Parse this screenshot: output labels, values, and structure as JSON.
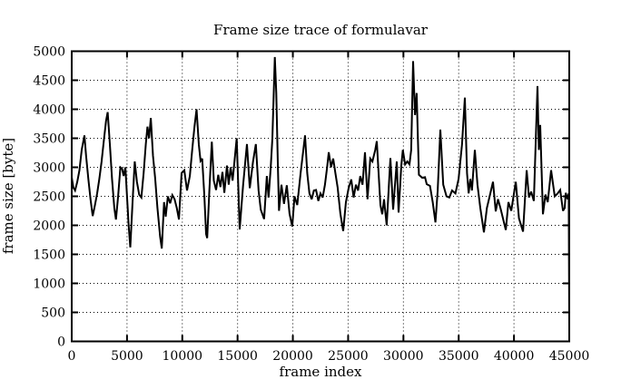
{
  "chart_data": {
    "type": "line",
    "title": "Frame size trace of formulavar",
    "xlabel": "frame index",
    "ylabel": "frame size [byte]",
    "xlim": [
      0,
      45000
    ],
    "ylim": [
      0,
      5000
    ],
    "x_ticks": [
      0,
      5000,
      10000,
      15000,
      20000,
      25000,
      30000,
      35000,
      40000,
      45000
    ],
    "y_ticks": [
      0,
      500,
      1000,
      1500,
      2000,
      2500,
      3000,
      3500,
      4000,
      4500,
      5000
    ],
    "grid": true,
    "legend": "none",
    "background": "#ffffff",
    "line_color": "#000000",
    "grid_color": "#000000",
    "series": [
      {
        "name": "frame size",
        "points": [
          [
            0,
            2830
          ],
          [
            150,
            2650
          ],
          [
            300,
            2600
          ],
          [
            500,
            2750
          ],
          [
            700,
            2950
          ],
          [
            900,
            3300
          ],
          [
            1050,
            3450
          ],
          [
            1150,
            3550
          ],
          [
            1300,
            3200
          ],
          [
            1500,
            2800
          ],
          [
            1700,
            2450
          ],
          [
            1900,
            2160
          ],
          [
            2100,
            2350
          ],
          [
            2300,
            2550
          ],
          [
            2500,
            2800
          ],
          [
            2700,
            3100
          ],
          [
            2900,
            3450
          ],
          [
            3100,
            3800
          ],
          [
            3250,
            3950
          ],
          [
            3450,
            3400
          ],
          [
            3650,
            2800
          ],
          [
            3850,
            2300
          ],
          [
            4000,
            2100
          ],
          [
            4200,
            2500
          ],
          [
            4400,
            3000
          ],
          [
            4550,
            2980
          ],
          [
            4700,
            2850
          ],
          [
            4850,
            3000
          ],
          [
            5000,
            2500
          ],
          [
            5150,
            2000
          ],
          [
            5300,
            1620
          ],
          [
            5500,
            2400
          ],
          [
            5700,
            3100
          ],
          [
            5900,
            2750
          ],
          [
            6100,
            2530
          ],
          [
            6300,
            2480
          ],
          [
            6500,
            2900
          ],
          [
            6700,
            3400
          ],
          [
            6850,
            3700
          ],
          [
            7000,
            3500
          ],
          [
            7150,
            3850
          ],
          [
            7350,
            3200
          ],
          [
            7550,
            2810
          ],
          [
            7750,
            2300
          ],
          [
            8000,
            1800
          ],
          [
            8150,
            1600
          ],
          [
            8350,
            2400
          ],
          [
            8500,
            2150
          ],
          [
            8700,
            2500
          ],
          [
            8900,
            2380
          ],
          [
            9100,
            2520
          ],
          [
            9300,
            2450
          ],
          [
            9500,
            2300
          ],
          [
            9700,
            2100
          ],
          [
            9940,
            2900
          ],
          [
            10180,
            2950
          ],
          [
            10430,
            2600
          ],
          [
            10680,
            2850
          ],
          [
            10900,
            3300
          ],
          [
            11100,
            3700
          ],
          [
            11290,
            4000
          ],
          [
            11500,
            3390
          ],
          [
            11650,
            3110
          ],
          [
            11800,
            3150
          ],
          [
            12000,
            2500
          ],
          [
            12150,
            1850
          ],
          [
            12250,
            1780
          ],
          [
            12450,
            2600
          ],
          [
            12670,
            3440
          ],
          [
            12850,
            2770
          ],
          [
            13060,
            2610
          ],
          [
            13250,
            2870
          ],
          [
            13450,
            2660
          ],
          [
            13630,
            2920
          ],
          [
            13800,
            2560
          ],
          [
            14040,
            3030
          ],
          [
            14200,
            2700
          ],
          [
            14370,
            3000
          ],
          [
            14550,
            2770
          ],
          [
            14920,
            3500
          ],
          [
            15190,
            1930
          ],
          [
            15500,
            2700
          ],
          [
            15850,
            3400
          ],
          [
            16100,
            2640
          ],
          [
            16400,
            3100
          ],
          [
            16650,
            3400
          ],
          [
            16900,
            2600
          ],
          [
            17100,
            2270
          ],
          [
            17400,
            2110
          ],
          [
            17650,
            2850
          ],
          [
            17800,
            2480
          ],
          [
            18000,
            3000
          ],
          [
            18150,
            3500
          ],
          [
            18370,
            4900
          ],
          [
            18500,
            4280
          ],
          [
            18650,
            3000
          ],
          [
            18750,
            2250
          ],
          [
            18970,
            2700
          ],
          [
            19200,
            2370
          ],
          [
            19450,
            2690
          ],
          [
            19700,
            2200
          ],
          [
            19950,
            1980
          ],
          [
            20150,
            2500
          ],
          [
            20400,
            2350
          ],
          [
            20700,
            2900
          ],
          [
            21100,
            3550
          ],
          [
            21300,
            2900
          ],
          [
            21500,
            2550
          ],
          [
            21700,
            2450
          ],
          [
            21900,
            2600
          ],
          [
            22100,
            2610
          ],
          [
            22300,
            2420
          ],
          [
            22500,
            2550
          ],
          [
            22700,
            2480
          ],
          [
            22900,
            2700
          ],
          [
            23100,
            3000
          ],
          [
            23250,
            3260
          ],
          [
            23450,
            3000
          ],
          [
            23650,
            3150
          ],
          [
            23850,
            2900
          ],
          [
            24050,
            2650
          ],
          [
            24300,
            2200
          ],
          [
            24550,
            1900
          ],
          [
            24800,
            2400
          ],
          [
            25050,
            2650
          ],
          [
            25280,
            2790
          ],
          [
            25500,
            2480
          ],
          [
            25700,
            2700
          ],
          [
            25900,
            2600
          ],
          [
            26100,
            2850
          ],
          [
            26300,
            2700
          ],
          [
            26520,
            3260
          ],
          [
            26750,
            2450
          ],
          [
            27000,
            3150
          ],
          [
            27200,
            3100
          ],
          [
            27450,
            3300
          ],
          [
            27590,
            3450
          ],
          [
            27920,
            2350
          ],
          [
            28080,
            2190
          ],
          [
            28250,
            2450
          ],
          [
            28490,
            2000
          ],
          [
            28820,
            3160
          ],
          [
            29070,
            2270
          ],
          [
            29400,
            3100
          ],
          [
            29560,
            2220
          ],
          [
            29810,
            3030
          ],
          [
            29950,
            3300
          ],
          [
            30150,
            3050
          ],
          [
            30350,
            3100
          ],
          [
            30550,
            3050
          ],
          [
            30700,
            3300
          ],
          [
            30880,
            4830
          ],
          [
            31050,
            3900
          ],
          [
            31200,
            4280
          ],
          [
            31400,
            2870
          ],
          [
            31700,
            2820
          ],
          [
            31950,
            2830
          ],
          [
            32110,
            2710
          ],
          [
            32400,
            2680
          ],
          [
            32650,
            2400
          ],
          [
            32900,
            2050
          ],
          [
            33100,
            2600
          ],
          [
            33340,
            3650
          ],
          [
            33600,
            2700
          ],
          [
            33900,
            2500
          ],
          [
            34150,
            2480
          ],
          [
            34400,
            2600
          ],
          [
            34700,
            2550
          ],
          [
            34990,
            2800
          ],
          [
            35300,
            3400
          ],
          [
            35560,
            4200
          ],
          [
            35750,
            2900
          ],
          [
            35900,
            2550
          ],
          [
            36050,
            2800
          ],
          [
            36200,
            2600
          ],
          [
            36460,
            3300
          ],
          [
            36700,
            2700
          ],
          [
            36950,
            2300
          ],
          [
            37280,
            1880
          ],
          [
            37550,
            2300
          ],
          [
            37800,
            2500
          ],
          [
            38100,
            2750
          ],
          [
            38350,
            2240
          ],
          [
            38550,
            2450
          ],
          [
            38800,
            2280
          ],
          [
            39260,
            1920
          ],
          [
            39500,
            2400
          ],
          [
            39750,
            2250
          ],
          [
            40160,
            2750
          ],
          [
            40450,
            2120
          ],
          [
            40820,
            1890
          ],
          [
            41150,
            2950
          ],
          [
            41350,
            2480
          ],
          [
            41550,
            2580
          ],
          [
            41800,
            2420
          ],
          [
            42130,
            4400
          ],
          [
            42250,
            3300
          ],
          [
            42370,
            3730
          ],
          [
            42620,
            2190
          ],
          [
            42850,
            2530
          ],
          [
            43050,
            2400
          ],
          [
            43360,
            2950
          ],
          [
            43690,
            2500
          ],
          [
            43950,
            2550
          ],
          [
            44180,
            2610
          ],
          [
            44430,
            2250
          ],
          [
            44590,
            2300
          ],
          [
            44680,
            2560
          ],
          [
            44850,
            2450
          ],
          [
            44950,
            2550
          ],
          [
            45000,
            260
          ]
        ]
      }
    ]
  }
}
